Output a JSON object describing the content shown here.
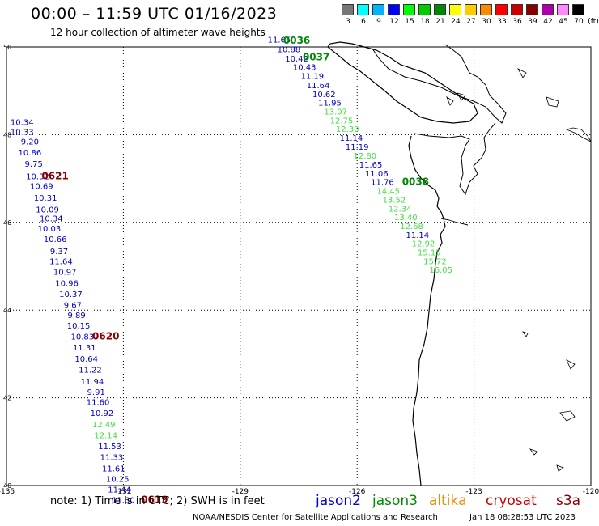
{
  "title": "00:00 – 11:59 UTC 01/16/2023",
  "subtitle": "12 hour collection of altimeter wave heights",
  "legend": {
    "unit": "(ft)",
    "items": [
      {
        "label": "3",
        "color": "#777777"
      },
      {
        "label": "6",
        "color": "#00ffff"
      },
      {
        "label": "9",
        "color": "#00b4ff"
      },
      {
        "label": "12",
        "color": "#0000ff"
      },
      {
        "label": "15",
        "color": "#00ff00"
      },
      {
        "label": "18",
        "color": "#00cc00"
      },
      {
        "label": "21",
        "color": "#008800"
      },
      {
        "label": "24",
        "color": "#ffff00"
      },
      {
        "label": "27",
        "color": "#ffcc00"
      },
      {
        "label": "30",
        "color": "#ff8800"
      },
      {
        "label": "33",
        "color": "#ff0000"
      },
      {
        "label": "36",
        "color": "#cc0000"
      },
      {
        "label": "39",
        "color": "#880000"
      },
      {
        "label": "42",
        "color": "#aa00aa"
      },
      {
        "label": "45",
        "color": "#ff88ff"
      },
      {
        "label": "70",
        "color": "#000000"
      }
    ]
  },
  "map": {
    "lon_ticks": [
      "-135",
      "-132",
      "-129",
      "-126",
      "-123",
      "-120"
    ],
    "lat_ticks": [
      "50",
      "48",
      "46",
      "44",
      "42",
      "40"
    ],
    "lon_range": [
      -135,
      -120
    ],
    "lat_range": [
      40,
      50
    ]
  },
  "colors": {
    "jason2": "#0000cc",
    "jason3": "#008800",
    "jason3_light": "#44dd44",
    "altika": "#ee8800",
    "cryosat": "#cc0000",
    "s3a": "#880000"
  },
  "tracks": [
    {
      "points": [
        {
          "lon": -134.6,
          "lat": 48.22,
          "v": "10.34",
          "c": "jason2"
        },
        {
          "lon": -134.6,
          "lat": 48.0,
          "v": "10.33",
          "c": "jason2"
        },
        {
          "lon": -134.4,
          "lat": 47.78,
          "v": "9.20",
          "c": "jason2"
        },
        {
          "lon": -134.4,
          "lat": 47.53,
          "v": "10.86",
          "c": "jason2"
        },
        {
          "lon": -134.3,
          "lat": 47.27,
          "v": "9.75",
          "c": "jason2"
        },
        {
          "lon": -134.2,
          "lat": 46.98,
          "v": "10.32",
          "c": "jason2"
        },
        {
          "lon": -134.1,
          "lat": 46.76,
          "v": "10.69",
          "c": "jason2"
        },
        {
          "lon": -134.0,
          "lat": 46.49,
          "v": "10.31",
          "c": "jason2"
        },
        {
          "lon": -133.95,
          "lat": 46.23,
          "v": "10.09",
          "c": "jason2"
        },
        {
          "lon": -133.85,
          "lat": 46.02,
          "v": "10.34",
          "c": "jason2"
        },
        {
          "lon": -133.9,
          "lat": 45.79,
          "v": "10.03",
          "c": "jason2"
        },
        {
          "lon": -133.75,
          "lat": 45.55,
          "v": "10.66",
          "c": "jason2"
        },
        {
          "lon": -133.65,
          "lat": 45.28,
          "v": "9.37",
          "c": "jason2"
        },
        {
          "lon": -133.6,
          "lat": 45.05,
          "v": "11.64",
          "c": "jason2"
        },
        {
          "lon": -133.5,
          "lat": 44.81,
          "v": "10.97",
          "c": "jason2"
        },
        {
          "lon": -133.45,
          "lat": 44.55,
          "v": "10.96",
          "c": "jason2"
        },
        {
          "lon": -133.35,
          "lat": 44.3,
          "v": "10.37",
          "c": "jason2"
        },
        {
          "lon": -133.3,
          "lat": 44.05,
          "v": "9.67",
          "c": "jason2"
        },
        {
          "lon": -133.2,
          "lat": 43.82,
          "v": "9.89",
          "c": "jason2"
        },
        {
          "lon": -133.15,
          "lat": 43.58,
          "v": "10.15",
          "c": "jason2"
        },
        {
          "lon": -133.05,
          "lat": 43.33,
          "v": "10.83",
          "c": "jason2"
        },
        {
          "lon": -133.0,
          "lat": 43.08,
          "v": "11.31",
          "c": "jason2"
        },
        {
          "lon": -132.95,
          "lat": 42.82,
          "v": "10.64",
          "c": "jason2"
        },
        {
          "lon": -132.85,
          "lat": 42.57,
          "v": "11.22",
          "c": "jason2"
        },
        {
          "lon": -132.8,
          "lat": 42.31,
          "v": "11.94",
          "c": "jason2"
        },
        {
          "lon": -132.7,
          "lat": 42.07,
          "v": "9.91",
          "c": "jason2"
        },
        {
          "lon": -132.65,
          "lat": 41.84,
          "v": "11.60",
          "c": "jason2"
        },
        {
          "lon": -132.55,
          "lat": 41.59,
          "v": "10.92",
          "c": "jason2"
        },
        {
          "lon": -132.5,
          "lat": 41.33,
          "v": "12.49",
          "c": "jason3_light"
        },
        {
          "lon": -132.45,
          "lat": 41.08,
          "v": "12.14",
          "c": "jason3_light"
        },
        {
          "lon": -132.35,
          "lat": 40.83,
          "v": "11.53",
          "c": "jason2"
        },
        {
          "lon": -132.3,
          "lat": 40.58,
          "v": "11.33",
          "c": "jason2"
        },
        {
          "lon": -132.25,
          "lat": 40.32,
          "v": "11.61",
          "c": "jason2"
        },
        {
          "lon": -132.15,
          "lat": 40.08,
          "v": "10.25",
          "c": "jason2"
        },
        {
          "lon": -132.1,
          "lat": 39.84,
          "v": "11.44",
          "c": "jason2"
        },
        {
          "lon": -132.0,
          "lat": 39.6,
          "v": "11.30",
          "c": "jason2"
        }
      ]
    },
    {
      "points": [
        {
          "lon": -128.0,
          "lat": 50.1,
          "v": "11.65",
          "c": "jason2"
        },
        {
          "lon": -127.75,
          "lat": 49.88,
          "v": "10.88",
          "c": "jason2"
        },
        {
          "lon": -127.55,
          "lat": 49.67,
          "v": "10.42",
          "c": "jason2"
        },
        {
          "lon": -127.35,
          "lat": 49.47,
          "v": "10.43",
          "c": "jason2"
        },
        {
          "lon": -127.15,
          "lat": 49.27,
          "v": "11.19",
          "c": "jason2"
        },
        {
          "lon": -127.0,
          "lat": 49.06,
          "v": "11.64",
          "c": "jason2"
        },
        {
          "lon": -126.85,
          "lat": 48.86,
          "v": "10.62",
          "c": "jason2"
        },
        {
          "lon": -126.7,
          "lat": 48.66,
          "v": "11.95",
          "c": "jason2"
        },
        {
          "lon": -126.55,
          "lat": 48.46,
          "v": "13.07",
          "c": "jason3_light"
        },
        {
          "lon": -126.4,
          "lat": 48.26,
          "v": "12.75",
          "c": "jason3_light"
        },
        {
          "lon": -126.25,
          "lat": 48.06,
          "v": "12.30",
          "c": "jason3_light"
        },
        {
          "lon": -126.15,
          "lat": 47.86,
          "v": "11.14",
          "c": "jason2"
        },
        {
          "lon": -126.0,
          "lat": 47.66,
          "v": "11.19",
          "c": "jason2"
        },
        {
          "lon": -125.8,
          "lat": 47.45,
          "v": "12.80",
          "c": "jason3_light"
        },
        {
          "lon": -125.65,
          "lat": 47.25,
          "v": "11.65",
          "c": "jason2"
        },
        {
          "lon": -125.5,
          "lat": 47.05,
          "v": "11.06",
          "c": "jason2"
        },
        {
          "lon": -125.35,
          "lat": 46.85,
          "v": "11.76",
          "c": "jason2"
        },
        {
          "lon": -125.2,
          "lat": 46.65,
          "v": "14.45",
          "c": "jason3_light"
        },
        {
          "lon": -125.05,
          "lat": 46.45,
          "v": "13.52",
          "c": "jason3_light"
        },
        {
          "lon": -124.9,
          "lat": 46.25,
          "v": "12.34",
          "c": "jason3_light"
        },
        {
          "lon": -124.75,
          "lat": 46.05,
          "v": "13.40",
          "c": "jason3_light"
        },
        {
          "lon": -124.6,
          "lat": 45.85,
          "v": "12.68",
          "c": "jason3_light"
        },
        {
          "lon": -124.45,
          "lat": 45.65,
          "v": "11.14",
          "c": "jason2"
        },
        {
          "lon": -124.3,
          "lat": 45.45,
          "v": "12.92",
          "c": "jason3_light"
        },
        {
          "lon": -124.15,
          "lat": 45.25,
          "v": "15.15",
          "c": "jason3_light"
        },
        {
          "lon": -124.0,
          "lat": 45.05,
          "v": "15.72",
          "c": "jason3_light"
        },
        {
          "lon": -123.85,
          "lat": 44.85,
          "v": "16.05",
          "c": "jason3_light"
        }
      ]
    }
  ],
  "time_labels": [
    {
      "text": "0036",
      "lon": -127.55,
      "lat": 50.07,
      "c": "jason3"
    },
    {
      "text": "0037",
      "lon": -127.05,
      "lat": 49.7,
      "c": "jason3"
    },
    {
      "text": "0038",
      "lon": -124.5,
      "lat": 46.85,
      "c": "jason3"
    },
    {
      "text": "0621",
      "lon": -133.75,
      "lat": 46.98,
      "c": "s3a"
    },
    {
      "text": "0620",
      "lon": -132.45,
      "lat": 43.33,
      "c": "s3a"
    },
    {
      "text": "0619",
      "lon": -131.2,
      "lat": 39.6,
      "c": "s3a"
    }
  ],
  "footer": {
    "note": "note:  1) Time is in UTC;  2) SWH is in feet",
    "sats": [
      {
        "name": "jason2",
        "c": "jason2"
      },
      {
        "name": "jason3",
        "c": "jason3"
      },
      {
        "name": "altika",
        "c": "altika"
      },
      {
        "name": "cryosat",
        "c": "cryosat"
      },
      {
        "name": "s3a",
        "c": "s3a"
      }
    ],
    "credit": "NOAA/NESDIS Center for Satellite Applications and Research",
    "timestamp": "Jan 18 08:28:53 UTC 2023"
  }
}
